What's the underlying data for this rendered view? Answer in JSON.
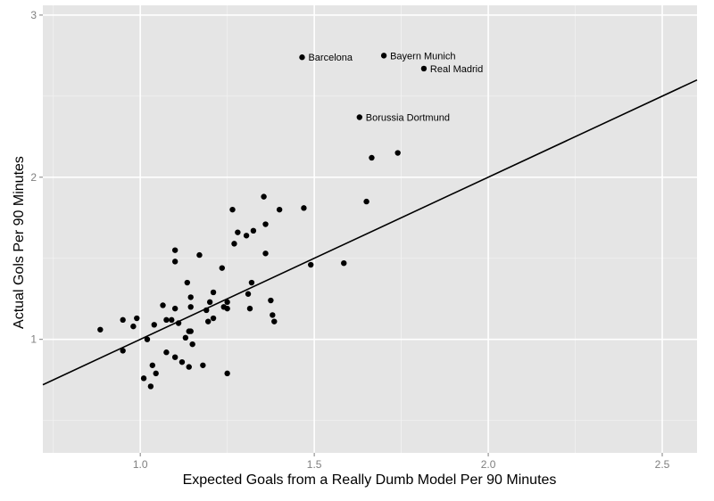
{
  "chart_data": {
    "type": "scatter",
    "title": "",
    "xlabel": "Expected Goals from a Really Dumb Model Per 90 Minutes",
    "ylabel": "Actual Gols Per 90 Minutes",
    "xlim": [
      0.72,
      2.6
    ],
    "ylim": [
      0.3,
      3.06
    ],
    "x_ticks": [
      1.0,
      1.5,
      2.0,
      2.5
    ],
    "x_tick_labels": [
      "1.0",
      "1.5",
      "2.0",
      "2.5"
    ],
    "y_ticks": [
      1,
      2,
      3
    ],
    "y_tick_labels": [
      "1",
      "2",
      "3"
    ],
    "grid": true,
    "background_color": "#e5e5e5",
    "grid_color": "#ffffff",
    "point_color": "#000000",
    "line_color": "#000000",
    "reference_line": {
      "slope": 1,
      "intercept": 0
    },
    "labeled_points": [
      {
        "label": "Barcelona",
        "x": 1.465,
        "y": 2.74
      },
      {
        "label": "Bayern Munich",
        "x": 1.7,
        "y": 2.75
      },
      {
        "label": "Real Madrid",
        "x": 1.815,
        "y": 2.67
      },
      {
        "label": "Borussia Dortmund",
        "x": 1.63,
        "y": 2.37
      }
    ],
    "points": [
      {
        "x": 0.885,
        "y": 1.06
      },
      {
        "x": 0.95,
        "y": 1.12
      },
      {
        "x": 0.99,
        "y": 1.13
      },
      {
        "x": 0.98,
        "y": 1.08
      },
      {
        "x": 0.95,
        "y": 0.93
      },
      {
        "x": 1.02,
        "y": 1.0
      },
      {
        "x": 1.01,
        "y": 0.76
      },
      {
        "x": 1.03,
        "y": 0.71
      },
      {
        "x": 1.035,
        "y": 0.84
      },
      {
        "x": 1.045,
        "y": 0.79
      },
      {
        "x": 1.04,
        "y": 1.09
      },
      {
        "x": 1.065,
        "y": 1.21
      },
      {
        "x": 1.075,
        "y": 1.12
      },
      {
        "x": 1.09,
        "y": 1.12
      },
      {
        "x": 1.075,
        "y": 0.92
      },
      {
        "x": 1.1,
        "y": 0.89
      },
      {
        "x": 1.1,
        "y": 1.19
      },
      {
        "x": 1.1,
        "y": 1.48
      },
      {
        "x": 1.1,
        "y": 1.55
      },
      {
        "x": 1.11,
        "y": 1.1
      },
      {
        "x": 1.12,
        "y": 0.86
      },
      {
        "x": 1.13,
        "y": 1.01
      },
      {
        "x": 1.135,
        "y": 1.35
      },
      {
        "x": 1.14,
        "y": 1.05
      },
      {
        "x": 1.14,
        "y": 0.83
      },
      {
        "x": 1.145,
        "y": 1.2
      },
      {
        "x": 1.145,
        "y": 1.05
      },
      {
        "x": 1.145,
        "y": 1.26
      },
      {
        "x": 1.15,
        "y": 0.97
      },
      {
        "x": 1.17,
        "y": 1.52
      },
      {
        "x": 1.18,
        "y": 0.84
      },
      {
        "x": 1.19,
        "y": 1.18
      },
      {
        "x": 1.195,
        "y": 1.11
      },
      {
        "x": 1.2,
        "y": 1.23
      },
      {
        "x": 1.21,
        "y": 1.29
      },
      {
        "x": 1.21,
        "y": 1.13
      },
      {
        "x": 1.235,
        "y": 1.44
      },
      {
        "x": 1.24,
        "y": 1.2
      },
      {
        "x": 1.25,
        "y": 1.23
      },
      {
        "x": 1.25,
        "y": 1.19
      },
      {
        "x": 1.25,
        "y": 0.79
      },
      {
        "x": 1.265,
        "y": 1.8
      },
      {
        "x": 1.27,
        "y": 1.59
      },
      {
        "x": 1.28,
        "y": 1.66
      },
      {
        "x": 1.305,
        "y": 1.64
      },
      {
        "x": 1.31,
        "y": 1.28
      },
      {
        "x": 1.315,
        "y": 1.19
      },
      {
        "x": 1.32,
        "y": 1.35
      },
      {
        "x": 1.325,
        "y": 1.67
      },
      {
        "x": 1.355,
        "y": 1.88
      },
      {
        "x": 1.36,
        "y": 1.53
      },
      {
        "x": 1.36,
        "y": 1.71
      },
      {
        "x": 1.375,
        "y": 1.24
      },
      {
        "x": 1.38,
        "y": 1.15
      },
      {
        "x": 1.385,
        "y": 1.11
      },
      {
        "x": 1.4,
        "y": 1.8
      },
      {
        "x": 1.47,
        "y": 1.81
      },
      {
        "x": 1.49,
        "y": 1.46
      },
      {
        "x": 1.585,
        "y": 1.47
      },
      {
        "x": 1.65,
        "y": 1.85
      },
      {
        "x": 1.665,
        "y": 2.12
      },
      {
        "x": 1.74,
        "y": 2.15
      }
    ]
  }
}
